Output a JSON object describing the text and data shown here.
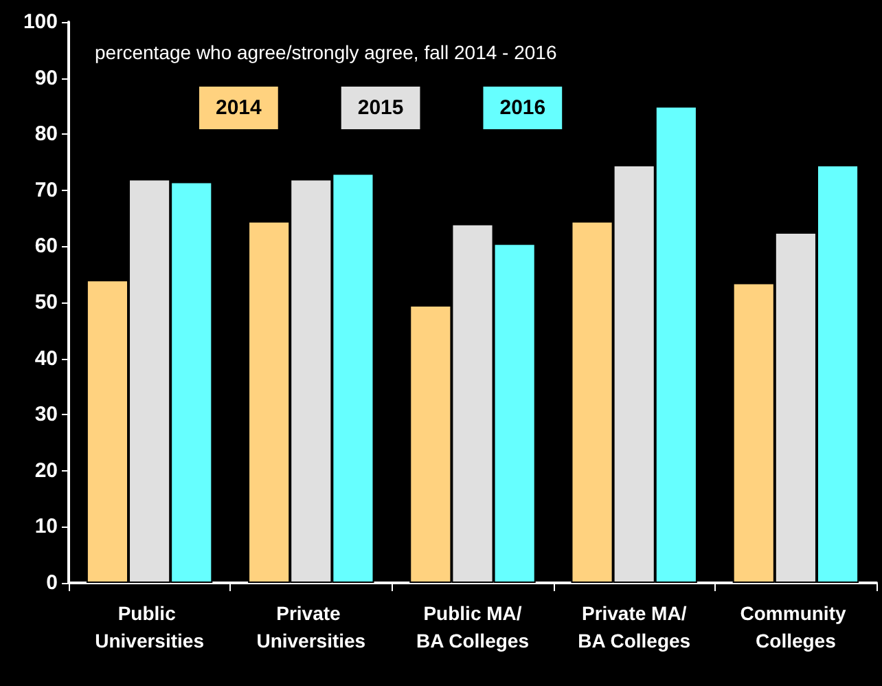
{
  "chart_data": {
    "type": "bar",
    "title": "percentage who agree/strongly agree, fall 2014 - 2016",
    "categories": [
      "Public Universities",
      "Private Universities",
      "Public MA/BA Colleges",
      "Private MA/BA Colleges",
      "Community Colleges"
    ],
    "series": [
      {
        "name": "2014",
        "color": "#ffd27f",
        "values": [
          54,
          64.5,
          49.5,
          64.5,
          53.5
        ]
      },
      {
        "name": "2015",
        "color": "#e0e0e0",
        "values": [
          72,
          72,
          64,
          74.5,
          62.5
        ]
      },
      {
        "name": "2016",
        "color": "#66ffff",
        "values": [
          71.5,
          73,
          60.5,
          85,
          74.5
        ]
      }
    ],
    "ylim": [
      0,
      100
    ],
    "yticks": [
      0,
      10,
      20,
      30,
      40,
      50,
      60,
      70,
      80,
      90,
      100
    ],
    "grid": false,
    "legend": "top left"
  }
}
